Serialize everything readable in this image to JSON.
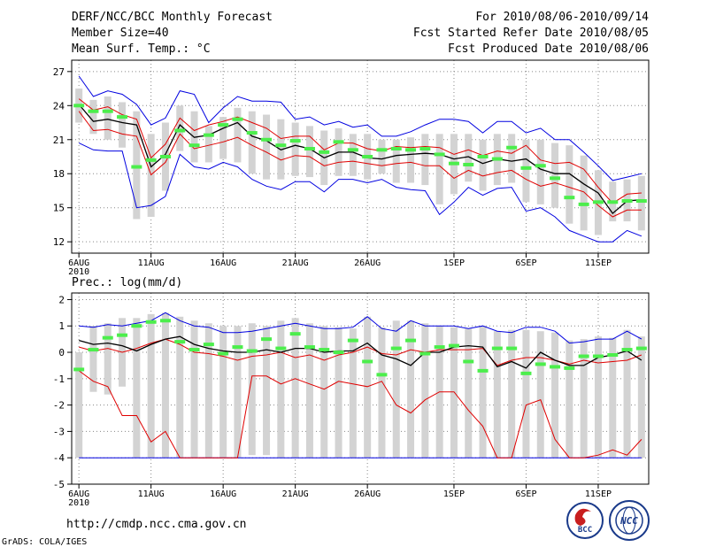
{
  "header": {
    "title": "DERF/NCC/BCC Monthly Forecast",
    "member_size": "Member Size=40",
    "variable": "Mean Surf. Temp.: °C",
    "period": "For 2010/08/06-2010/09/14",
    "started": "Fcst Started Refer Date 2010/08/05",
    "produced": "Fcst Produced Date 2010/08/06"
  },
  "footer": {
    "url": "http://cmdp.ncc.cma.gov.cn",
    "credit": "GrADS: COLA/IGES",
    "logo_bcc": "BCC",
    "logo_ncc": "NCC"
  },
  "colors": {
    "bar": "#d3d3d3",
    "obs": "#4cee4c",
    "mean": "#000000",
    "inner": "#e00000",
    "outer": "#0000e0",
    "grid": "#888888"
  },
  "chart_data": [
    {
      "type": "line",
      "title": "Mean Surf. Temp.: °C",
      "ylim": [
        11,
        28
      ],
      "yticks": [
        12,
        15,
        18,
        21,
        24,
        27
      ],
      "ytick_labels": [
        "12",
        "15",
        "18",
        "21",
        "24",
        "27"
      ],
      "xlim": [
        0.5,
        40.5
      ],
      "xticks": [
        {
          "day": 1,
          "label": "6AUG",
          "sub": "2010"
        },
        {
          "day": 6,
          "label": "11AUG"
        },
        {
          "day": 11,
          "label": "16AUG"
        },
        {
          "day": 16,
          "label": "21AUG"
        },
        {
          "day": 21,
          "label": "26AUG"
        },
        {
          "day": 27,
          "label": "1SEP"
        },
        {
          "day": 32,
          "label": "6SEP"
        },
        {
          "day": 37,
          "label": "11SEP"
        }
      ],
      "series": [
        {
          "name": "ensemble max",
          "role": "outer",
          "values": [
            26.6,
            24.8,
            25.3,
            25.0,
            24.1,
            22.3,
            22.9,
            25.3,
            25.0,
            22.5,
            23.8,
            24.8,
            24.4,
            24.4,
            24.3,
            22.8,
            23.0,
            22.3,
            22.6,
            22.1,
            22.3,
            21.3,
            21.3,
            21.7,
            22.3,
            22.8,
            22.8,
            22.6,
            21.6,
            22.6,
            22.6,
            21.6,
            22.0,
            21.0,
            21.0,
            19.9,
            18.7,
            17.4,
            17.7,
            18.0
          ]
        },
        {
          "name": "mean + std",
          "role": "inner",
          "values": [
            24.6,
            23.6,
            23.9,
            23.2,
            22.8,
            19.4,
            20.6,
            22.9,
            21.8,
            22.3,
            22.6,
            23.0,
            22.5,
            22.0,
            21.1,
            21.3,
            21.3,
            20.1,
            20.7,
            20.7,
            20.2,
            20.0,
            20.4,
            20.3,
            20.4,
            20.3,
            19.7,
            20.1,
            19.6,
            20.0,
            19.8,
            20.5,
            19.2,
            18.9,
            19.0,
            18.4,
            16.8,
            15.4,
            16.2,
            16.3
          ]
        },
        {
          "name": "ensemble mean",
          "role": "mean",
          "values": [
            24.1,
            22.6,
            22.8,
            22.5,
            22.3,
            18.6,
            19.7,
            22.3,
            21.2,
            21.4,
            22.0,
            22.5,
            21.3,
            20.9,
            20.1,
            20.5,
            20.2,
            19.4,
            19.9,
            19.9,
            19.4,
            19.3,
            19.6,
            19.7,
            19.8,
            19.7,
            19.3,
            19.5,
            18.9,
            19.3,
            19.1,
            19.3,
            18.4,
            18.0,
            18.0,
            17.1,
            16.3,
            14.5,
            15.6,
            15.7
          ]
        },
        {
          "name": "mean - std",
          "role": "inner",
          "values": [
            23.5,
            21.8,
            21.9,
            21.5,
            21.3,
            17.9,
            19.0,
            21.5,
            20.2,
            20.5,
            20.8,
            21.2,
            20.5,
            19.9,
            19.2,
            19.6,
            19.5,
            18.7,
            19.0,
            19.1,
            18.9,
            18.7,
            18.9,
            19.0,
            18.7,
            18.7,
            17.6,
            18.3,
            17.8,
            18.1,
            18.3,
            17.5,
            16.9,
            17.2,
            16.8,
            16.4,
            15.2,
            14.2,
            14.8,
            14.8
          ]
        },
        {
          "name": "ensemble min",
          "role": "outer",
          "values": [
            20.7,
            20.1,
            20.0,
            20.0,
            15.0,
            15.2,
            16.0,
            19.7,
            18.6,
            18.4,
            19.0,
            18.6,
            17.5,
            16.9,
            16.6,
            17.3,
            17.3,
            16.4,
            17.5,
            17.5,
            17.2,
            17.5,
            16.8,
            16.6,
            16.5,
            14.4,
            15.5,
            16.8,
            16.1,
            16.7,
            16.8,
            14.7,
            15.0,
            14.2,
            13.0,
            12.5,
            12.0,
            12.0,
            13.0,
            12.5
          ]
        },
        {
          "name": "observed",
          "role": "obs",
          "values": [
            24.0,
            23.5,
            23.5,
            23.0,
            18.6,
            19.2,
            19.5,
            21.8,
            20.5,
            21.4,
            22.3,
            22.8,
            21.6,
            21.0,
            20.5,
            20.9,
            20.2,
            19.9,
            20.8,
            20.1,
            19.5,
            20.1,
            20.2,
            20.1,
            20.2,
            19.7,
            18.9,
            18.8,
            19.5,
            19.3,
            20.3,
            18.5,
            18.7,
            17.6,
            15.9,
            15.3,
            15.5,
            15.5,
            15.6,
            15.6
          ]
        },
        {
          "name": "spread top",
          "role": "bar_top",
          "values": [
            25.5,
            24.5,
            24.8,
            24.3,
            23.5,
            21.5,
            22.5,
            24.0,
            23.5,
            22.2,
            23.0,
            23.8,
            23.5,
            23.2,
            22.8,
            22.5,
            22.2,
            21.8,
            22.0,
            21.5,
            21.5,
            21.0,
            21.0,
            21.2,
            21.5,
            21.5,
            21.5,
            21.5,
            21.0,
            21.5,
            21.5,
            21.0,
            21.0,
            20.7,
            20.5,
            19.6,
            18.3,
            17.3,
            17.5,
            17.8
          ]
        },
        {
          "name": "spread bottom",
          "role": "bar_bottom",
          "values": [
            22.5,
            21.5,
            21.0,
            20.3,
            14.0,
            14.2,
            16.5,
            20.0,
            19.0,
            19.0,
            19.3,
            19.0,
            18.0,
            17.5,
            17.5,
            17.8,
            17.7,
            17.0,
            17.8,
            17.8,
            17.5,
            18.0,
            17.2,
            17.2,
            17.0,
            15.3,
            16.2,
            17.3,
            16.5,
            17.0,
            17.2,
            15.5,
            15.3,
            15.0,
            13.6,
            13.0,
            12.6,
            13.8,
            13.8,
            13.0
          ]
        }
      ]
    },
    {
      "type": "line",
      "title": "Prec.: log(mm/d)",
      "ylim": [
        -5,
        2.25
      ],
      "yticks": [
        -5,
        -4,
        -3,
        -2,
        -1,
        0,
        1,
        2
      ],
      "ytick_labels": [
        "-5",
        "-4",
        "-3",
        "-2",
        "-1",
        "0",
        "1",
        "2"
      ],
      "xlim": [
        0.5,
        40.5
      ],
      "xticks": [
        {
          "day": 1,
          "label": "6AUG",
          "sub": "2010"
        },
        {
          "day": 6,
          "label": "11AUG"
        },
        {
          "day": 11,
          "label": "16AUG"
        },
        {
          "day": 16,
          "label": "21AUG"
        },
        {
          "day": 21,
          "label": "26AUG"
        },
        {
          "day": 27,
          "label": "1SEP"
        },
        {
          "day": 32,
          "label": "6SEP"
        },
        {
          "day": 37,
          "label": "11SEP"
        }
      ],
      "series": [
        {
          "name": "ensemble max",
          "role": "outer",
          "values": [
            1.0,
            0.95,
            1.05,
            1.0,
            1.1,
            1.2,
            1.5,
            1.2,
            1.0,
            0.95,
            0.75,
            0.75,
            0.8,
            0.9,
            1.0,
            1.1,
            1.0,
            0.9,
            0.9,
            0.95,
            1.35,
            0.9,
            0.8,
            1.2,
            1.0,
            1.0,
            1.0,
            0.9,
            1.0,
            0.8,
            0.75,
            0.95,
            0.95,
            0.8,
            0.35,
            0.4,
            0.5,
            0.5,
            0.8,
            0.5
          ]
        },
        {
          "name": "mean + std",
          "role": "inner",
          "values": [
            0.2,
            0.05,
            0.15,
            0.0,
            0.15,
            0.35,
            0.5,
            0.3,
            0.0,
            -0.05,
            -0.15,
            -0.3,
            -0.15,
            -0.1,
            0.0,
            -0.2,
            -0.1,
            -0.3,
            -0.1,
            0.0,
            0.2,
            -0.05,
            -0.1,
            0.1,
            0.0,
            0.1,
            0.1,
            0.1,
            0.15,
            -0.5,
            -0.3,
            -0.2,
            -0.2,
            -0.3,
            -0.45,
            -0.3,
            -0.4,
            -0.35,
            -0.3,
            -0.1
          ]
        },
        {
          "name": "ensemble mean",
          "role": "mean",
          "values": [
            0.45,
            0.3,
            0.35,
            0.25,
            0.05,
            0.3,
            0.5,
            0.6,
            0.3,
            0.15,
            0.05,
            0.0,
            0.0,
            0.1,
            0.0,
            0.15,
            0.15,
            0.0,
            0.05,
            0.05,
            0.35,
            -0.1,
            -0.25,
            -0.5,
            0.0,
            0.0,
            0.2,
            0.25,
            0.2,
            -0.55,
            -0.35,
            -0.6,
            0.0,
            -0.3,
            -0.5,
            -0.5,
            -0.2,
            -0.1,
            0.05,
            -0.3
          ]
        },
        {
          "name": "mean - std",
          "role": "inner",
          "values": [
            -0.7,
            -1.1,
            -1.3,
            -2.4,
            -2.4,
            -3.4,
            -3.0,
            -4.0,
            -4.0,
            -4.0,
            -4.0,
            -4.0,
            -0.9,
            -0.9,
            -1.2,
            -1.0,
            -1.2,
            -1.4,
            -1.1,
            -1.2,
            -1.3,
            -1.1,
            -2.0,
            -2.3,
            -1.8,
            -1.5,
            -1.5,
            -2.2,
            -2.8,
            -4.0,
            -4.0,
            -2.0,
            -1.8,
            -3.3,
            -4.0,
            -4.0,
            -3.9,
            -3.7,
            -3.9,
            -3.3
          ]
        },
        {
          "name": "ensemble min",
          "role": "outer",
          "values": [
            -4,
            -4,
            -4,
            -4,
            -4,
            -4,
            -4,
            -4,
            -4,
            -4,
            -4,
            -4,
            -4,
            -4,
            -4,
            -4,
            -4,
            -4,
            -4,
            -4,
            -4,
            -4,
            -4,
            -4,
            -4,
            -4,
            -4,
            -4,
            -4,
            -4,
            -4,
            -4,
            -4,
            -4,
            -4,
            -4,
            -4,
            -4,
            -4,
            -4
          ]
        },
        {
          "name": "observed",
          "role": "obs",
          "values": [
            -0.65,
            0.1,
            0.55,
            0.65,
            1.0,
            1.15,
            1.2,
            0.4,
            0.1,
            0.3,
            -0.05,
            0.2,
            0.05,
            0.5,
            0.15,
            0.7,
            0.2,
            0.1,
            0.0,
            0.45,
            -0.35,
            -0.85,
            0.15,
            0.45,
            -0.05,
            0.2,
            0.25,
            -0.35,
            -0.7,
            0.15,
            0.15,
            -0.8,
            -0.45,
            -0.55,
            -0.6,
            -0.15,
            -0.15,
            -0.1,
            0.1,
            0.15
          ]
        },
        {
          "name": "spread top",
          "role": "bar_top",
          "values": [
            0.0,
            1.0,
            1.1,
            1.3,
            1.3,
            1.45,
            1.5,
            1.35,
            1.2,
            1.1,
            1.0,
            1.0,
            1.1,
            1.0,
            1.2,
            1.3,
            1.1,
            1.0,
            0.95,
            0.9,
            1.35,
            0.95,
            1.2,
            1.2,
            1.1,
            1.0,
            0.95,
            0.9,
            1.0,
            0.8,
            0.85,
            0.85,
            0.8,
            0.75,
            0.45,
            0.5,
            0.6,
            0.55,
            0.85,
            0.6
          ]
        },
        {
          "name": "spread bottom",
          "role": "bar_bottom",
          "values": [
            -4,
            -1.5,
            -1.6,
            -1.3,
            -4,
            -4,
            -4,
            -4,
            -4,
            -4,
            -4,
            -4,
            -3.9,
            -3.9,
            -4,
            -4,
            -4,
            -4,
            -4,
            -4,
            -4,
            -4,
            -4,
            -4,
            -4,
            -4,
            -4,
            -4,
            -4,
            -4,
            -4,
            -4,
            -4,
            -4,
            -4,
            -4,
            -4,
            -4,
            -4,
            -4
          ]
        }
      ]
    }
  ]
}
